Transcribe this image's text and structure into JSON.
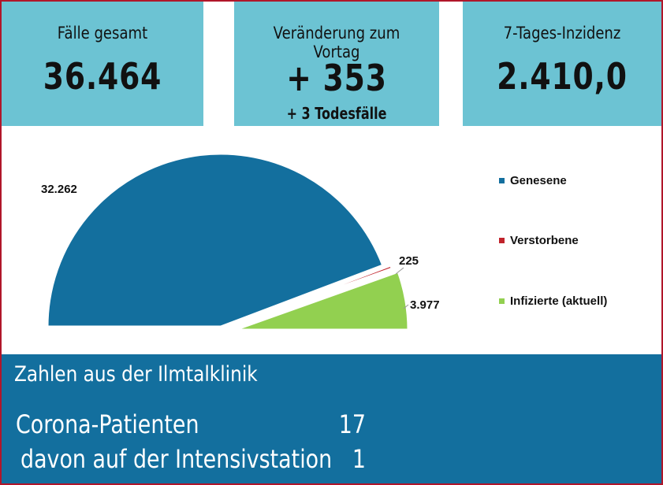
{
  "cards": [
    {
      "label": "Fälle gesamt",
      "value": "36.464",
      "sub": ""
    },
    {
      "label": "Veränderung zum Vortag",
      "value": "+ 353",
      "sub": "+ 3 Todesfälle"
    },
    {
      "label": "7-Tages-Inzidenz",
      "value": "2.410,0",
      "sub": ""
    }
  ],
  "chart_data": {
    "type": "pie",
    "shape": "half-pie",
    "series": [
      {
        "name": "Genesene",
        "value": 32262,
        "label": "32.262",
        "color": "#136f9e"
      },
      {
        "name": "Verstorbene",
        "value": 225,
        "label": "225",
        "color": "#c0232b"
      },
      {
        "name": "Infizierte (aktuell)",
        "value": 3977,
        "label": "3.977",
        "color": "#92d050"
      }
    ],
    "legend": "right"
  },
  "clinic": {
    "title": "Zahlen aus der Ilmtalklinik",
    "rows": [
      {
        "label": "Corona-Patienten",
        "value": "17"
      },
      {
        "label": "davon auf der Intensivstation",
        "value": "1"
      }
    ]
  }
}
